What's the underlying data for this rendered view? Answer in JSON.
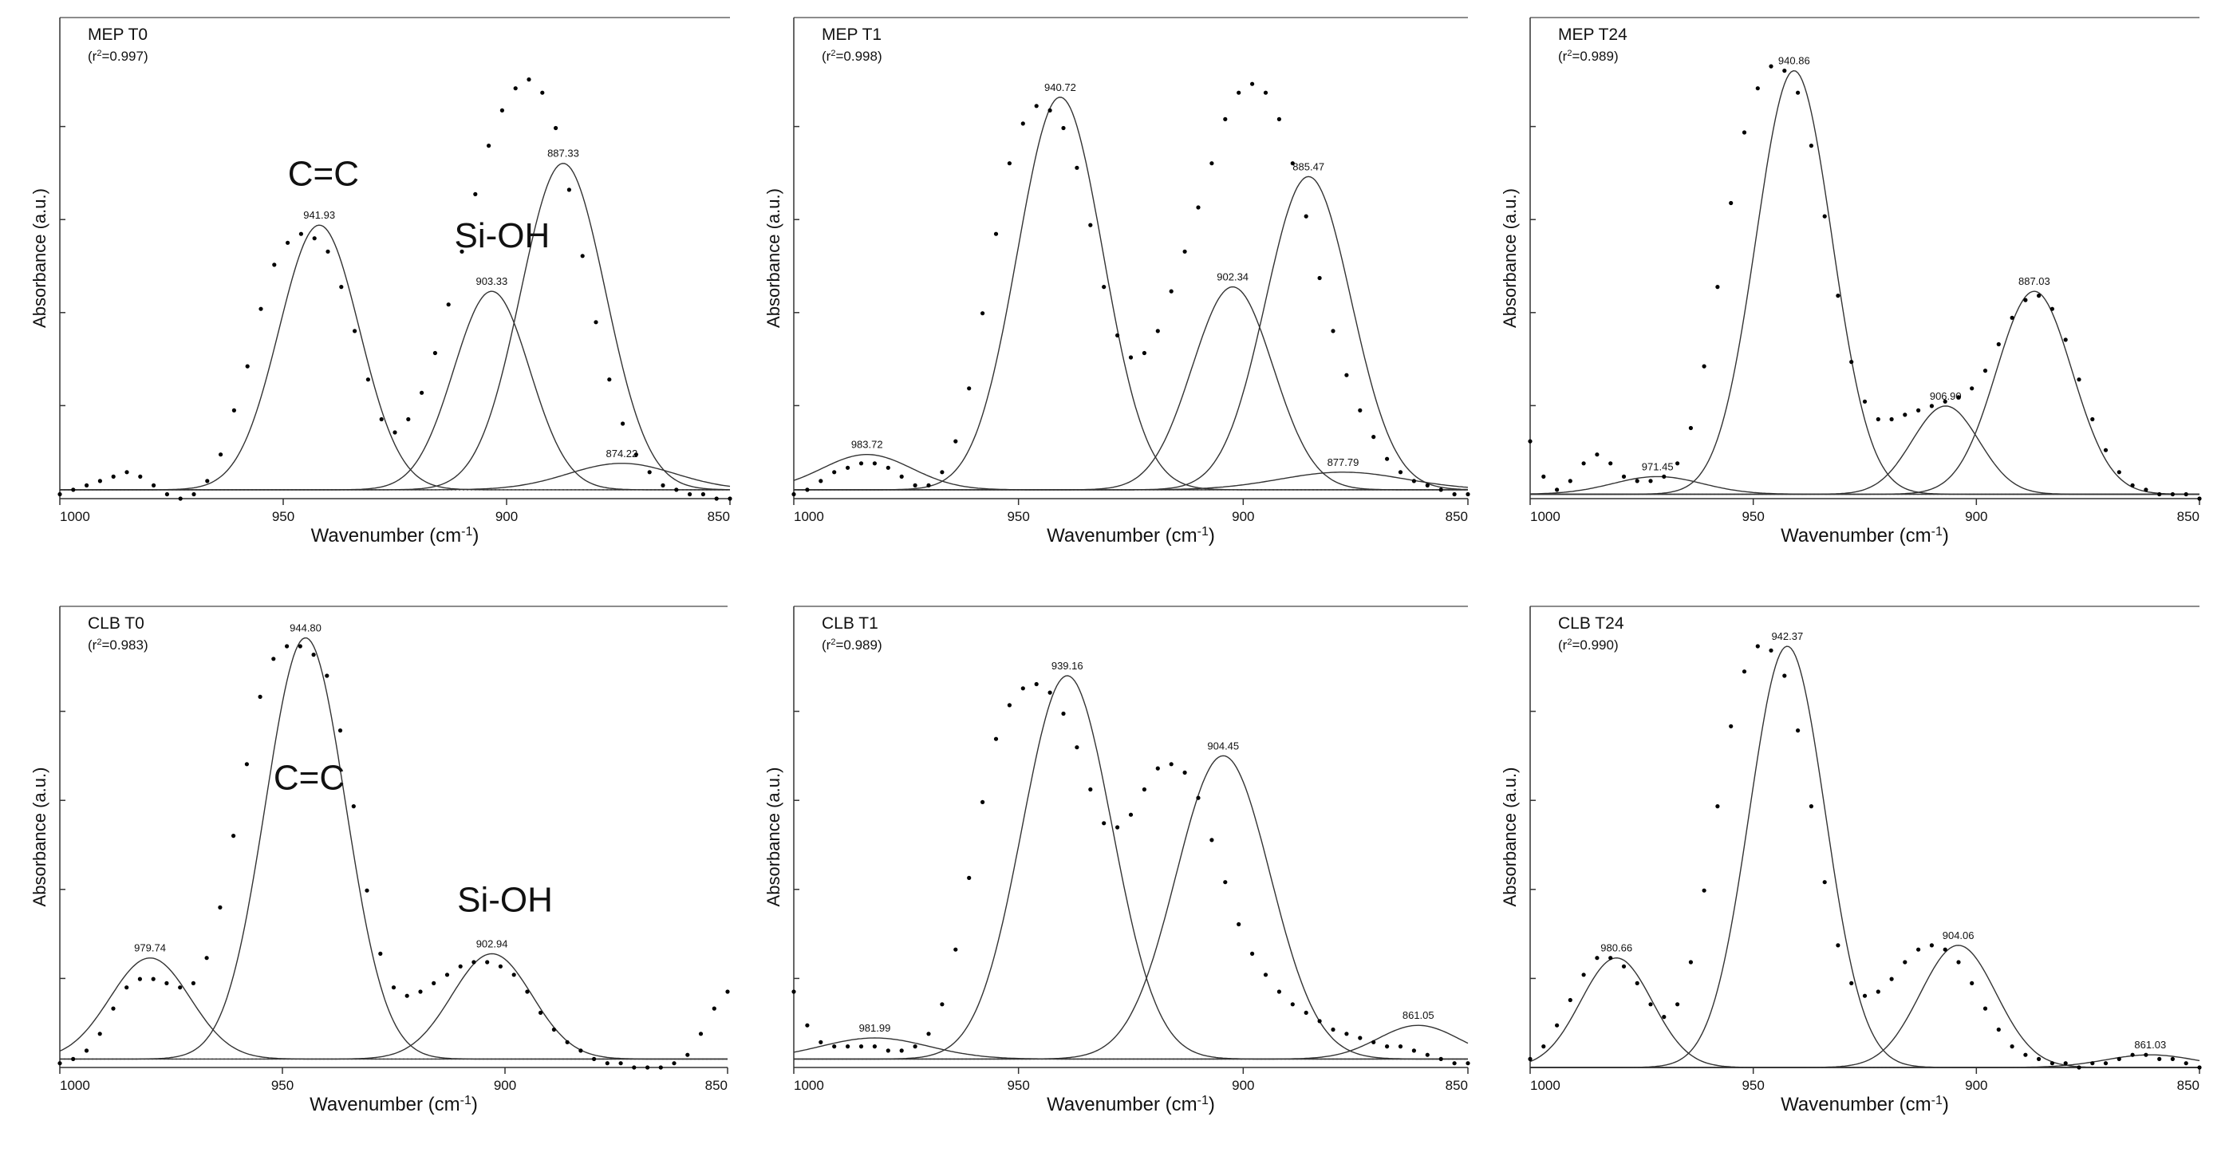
{
  "figure": {
    "axis_xlabel_main": "Wavenumber (cm",
    "axis_xlabel_sup": "-1",
    "axis_xlabel_close": ")",
    "axis_ylabel": "Absorbance (a.u.)",
    "r2_prefix": "(r",
    "r2_sup": "2",
    "r2_eq": "=",
    "r2_close": ")"
  },
  "chart_data": [
    {
      "type": "line",
      "title": "MEP T0",
      "r2": "0.997",
      "xlabel": "Wavenumber (cm-1)",
      "ylabel": "Absorbance (a.u.)",
      "xlim": [
        1000,
        850
      ],
      "ylim": [
        0,
        1
      ],
      "x_ticks": [
        "1000",
        "950",
        "900",
        "850"
      ],
      "baseline": 0.02,
      "annotations": [
        {
          "text": "C=C",
          "x": 941,
          "y": 0.71
        },
        {
          "text": "Si-OH",
          "x": 901,
          "y": 0.57
        }
      ],
      "peaks": [
        {
          "center": 941.93,
          "amp": 0.6,
          "sigma": 9.0,
          "label": "941.93"
        },
        {
          "center": 903.33,
          "amp": 0.45,
          "sigma": 8.5,
          "label": "903.33"
        },
        {
          "center": 887.33,
          "amp": 0.74,
          "sigma": 9.5,
          "label": "887.33"
        },
        {
          "center": 874.22,
          "amp": 0.06,
          "sigma": 12.0,
          "label": "874.22"
        }
      ],
      "points_x": [
        1000,
        997,
        994,
        991,
        988,
        985,
        982,
        979,
        976,
        973,
        970,
        967,
        964,
        961,
        958,
        955,
        952,
        949,
        946,
        943,
        940,
        937,
        934,
        931,
        928,
        925,
        922,
        919,
        916,
        913,
        910,
        907,
        904,
        901,
        898,
        895,
        892,
        889,
        886,
        883,
        880,
        877,
        874,
        871,
        868,
        865,
        862,
        859,
        856,
        853,
        850
      ],
      "points_y": [
        0.01,
        0.02,
        0.03,
        0.04,
        0.05,
        0.06,
        0.05,
        0.03,
        0.01,
        0.0,
        0.01,
        0.04,
        0.1,
        0.2,
        0.3,
        0.43,
        0.53,
        0.58,
        0.6,
        0.59,
        0.56,
        0.48,
        0.38,
        0.27,
        0.18,
        0.15,
        0.18,
        0.24,
        0.33,
        0.44,
        0.56,
        0.69,
        0.8,
        0.88,
        0.93,
        0.95,
        0.92,
        0.84,
        0.7,
        0.55,
        0.4,
        0.27,
        0.17,
        0.1,
        0.06,
        0.03,
        0.02,
        0.01,
        0.01,
        0.0,
        0.0
      ]
    },
    {
      "type": "line",
      "title": "MEP T1",
      "r2": "0.998",
      "xlabel": "Wavenumber (cm-1)",
      "ylabel": "Absorbance (a.u.)",
      "xlim": [
        1000,
        850
      ],
      "ylim": [
        0,
        1
      ],
      "x_ticks": [
        "1000",
        "950",
        "900",
        "850"
      ],
      "baseline": 0.02,
      "annotations": [],
      "peaks": [
        {
          "center": 983.72,
          "amp": 0.08,
          "sigma": 10.0,
          "label": "983.72"
        },
        {
          "center": 940.72,
          "amp": 0.89,
          "sigma": 9.5,
          "label": "940.72"
        },
        {
          "center": 902.34,
          "amp": 0.46,
          "sigma": 9.0,
          "label": "902.34"
        },
        {
          "center": 885.47,
          "amp": 0.71,
          "sigma": 9.5,
          "label": "885.47"
        },
        {
          "center": 877.79,
          "amp": 0.04,
          "sigma": 14.0,
          "label": "877.79"
        }
      ],
      "points_x": [
        1000,
        997,
        994,
        991,
        988,
        985,
        982,
        979,
        976,
        973,
        970,
        967,
        964,
        961,
        958,
        955,
        952,
        949,
        946,
        943,
        940,
        937,
        934,
        931,
        928,
        925,
        922,
        919,
        916,
        913,
        910,
        907,
        904,
        901,
        898,
        895,
        892,
        889,
        886,
        883,
        880,
        877,
        874,
        871,
        868,
        865,
        862,
        859,
        856,
        853,
        850
      ],
      "points_y": [
        0.01,
        0.02,
        0.04,
        0.06,
        0.07,
        0.08,
        0.08,
        0.07,
        0.05,
        0.03,
        0.03,
        0.06,
        0.13,
        0.25,
        0.42,
        0.6,
        0.76,
        0.85,
        0.89,
        0.88,
        0.84,
        0.75,
        0.62,
        0.48,
        0.37,
        0.32,
        0.33,
        0.38,
        0.47,
        0.56,
        0.66,
        0.76,
        0.86,
        0.92,
        0.94,
        0.92,
        0.86,
        0.76,
        0.64,
        0.5,
        0.38,
        0.28,
        0.2,
        0.14,
        0.09,
        0.06,
        0.04,
        0.03,
        0.02,
        0.01,
        0.01
      ]
    },
    {
      "type": "line",
      "title": "MEP T24",
      "r2": "0.989",
      "xlabel": "Wavenumber (cm-1)",
      "ylabel": "Absorbance (a.u.)",
      "xlim": [
        1000,
        850
      ],
      "ylim": [
        0,
        1
      ],
      "x_ticks": [
        "1000",
        "950",
        "900",
        "850"
      ],
      "baseline": 0.01,
      "annotations": [],
      "peaks": [
        {
          "center": 971.45,
          "amp": 0.04,
          "sigma": 10.0,
          "label": "971.45"
        },
        {
          "center": 940.86,
          "amp": 0.96,
          "sigma": 8.5,
          "label": "940.86"
        },
        {
          "center": 906.9,
          "amp": 0.2,
          "sigma": 7.5,
          "label": "906.90"
        },
        {
          "center": 887.03,
          "amp": 0.46,
          "sigma": 8.5,
          "label": "887.03"
        }
      ],
      "points_x": [
        1000,
        997,
        994,
        991,
        988,
        985,
        982,
        979,
        976,
        973,
        970,
        967,
        964,
        961,
        958,
        955,
        952,
        949,
        946,
        943,
        940,
        937,
        934,
        931,
        928,
        925,
        922,
        919,
        916,
        913,
        910,
        907,
        904,
        901,
        898,
        895,
        892,
        889,
        886,
        883,
        880,
        877,
        874,
        871,
        868,
        865,
        862,
        859,
        856,
        853,
        850
      ],
      "points_y": [
        0.13,
        0.05,
        0.02,
        0.04,
        0.08,
        0.1,
        0.08,
        0.05,
        0.04,
        0.04,
        0.05,
        0.08,
        0.16,
        0.3,
        0.48,
        0.67,
        0.83,
        0.93,
        0.98,
        0.97,
        0.92,
        0.8,
        0.64,
        0.46,
        0.31,
        0.22,
        0.18,
        0.18,
        0.19,
        0.2,
        0.21,
        0.22,
        0.23,
        0.25,
        0.29,
        0.35,
        0.41,
        0.45,
        0.46,
        0.43,
        0.36,
        0.27,
        0.18,
        0.11,
        0.06,
        0.03,
        0.02,
        0.01,
        0.01,
        0.01,
        0.0
      ]
    },
    {
      "type": "line",
      "title": "CLB T0",
      "r2": "0.983",
      "xlabel": "Wavenumber (cm-1)",
      "ylabel": "Absorbance (a.u.)",
      "xlim": [
        1000,
        850
      ],
      "ylim": [
        0,
        1
      ],
      "x_ticks": [
        "1000",
        "950",
        "900",
        "850"
      ],
      "baseline": 0.02,
      "annotations": [
        {
          "text": "C=C",
          "x": 944,
          "y": 0.66
        },
        {
          "text": "Si-OH",
          "x": 900,
          "y": 0.37
        }
      ],
      "peaks": [
        {
          "center": 979.74,
          "amp": 0.24,
          "sigma": 9.0,
          "label": "979.74"
        },
        {
          "center": 944.8,
          "amp": 1.0,
          "sigma": 9.0,
          "label": "944.80"
        },
        {
          "center": 902.94,
          "amp": 0.25,
          "sigma": 9.0,
          "label": "902.94"
        }
      ],
      "points_x": [
        1000,
        997,
        994,
        991,
        988,
        985,
        982,
        979,
        976,
        973,
        970,
        967,
        964,
        961,
        958,
        955,
        952,
        949,
        946,
        943,
        940,
        937,
        934,
        931,
        928,
        925,
        922,
        919,
        916,
        913,
        910,
        907,
        904,
        901,
        898,
        895,
        892,
        889,
        886,
        883,
        880,
        877,
        874,
        871,
        868,
        865,
        862,
        859,
        856,
        853,
        850
      ],
      "points_y": [
        0.01,
        0.02,
        0.04,
        0.08,
        0.14,
        0.19,
        0.21,
        0.21,
        0.2,
        0.19,
        0.2,
        0.26,
        0.38,
        0.55,
        0.72,
        0.88,
        0.97,
        1.0,
        1.0,
        0.98,
        0.93,
        0.8,
        0.62,
        0.42,
        0.27,
        0.19,
        0.17,
        0.18,
        0.2,
        0.22,
        0.24,
        0.25,
        0.25,
        0.24,
        0.22,
        0.18,
        0.13,
        0.09,
        0.06,
        0.04,
        0.02,
        0.01,
        0.01,
        0.0,
        0.0,
        0.0,
        0.01,
        0.03,
        0.08,
        0.14,
        0.18
      ]
    },
    {
      "type": "line",
      "title": "CLB T1",
      "r2": "0.989",
      "xlabel": "Wavenumber (cm-1)",
      "ylabel": "Absorbance (a.u.)",
      "xlim": [
        1000,
        850
      ],
      "ylim": [
        0,
        1
      ],
      "x_ticks": [
        "1000",
        "950",
        "900",
        "850"
      ],
      "baseline": 0.02,
      "annotations": [],
      "peaks": [
        {
          "center": 981.99,
          "amp": 0.05,
          "sigma": 12.0,
          "label": "981.99"
        },
        {
          "center": 939.16,
          "amp": 0.91,
          "sigma": 10.0,
          "label": "939.16"
        },
        {
          "center": 904.45,
          "amp": 0.72,
          "sigma": 10.5,
          "label": "904.45"
        },
        {
          "center": 861.05,
          "amp": 0.08,
          "sigma": 9.0,
          "label": "861.05"
        }
      ],
      "points_x": [
        1000,
        997,
        994,
        991,
        988,
        985,
        982,
        979,
        976,
        973,
        970,
        967,
        964,
        961,
        958,
        955,
        952,
        949,
        946,
        943,
        940,
        937,
        934,
        931,
        928,
        925,
        922,
        919,
        916,
        913,
        910,
        907,
        904,
        901,
        898,
        895,
        892,
        889,
        886,
        883,
        880,
        877,
        874,
        871,
        868,
        865,
        862,
        859,
        856,
        853,
        850
      ],
      "points_y": [
        0.18,
        0.1,
        0.06,
        0.05,
        0.05,
        0.05,
        0.05,
        0.04,
        0.04,
        0.05,
        0.08,
        0.15,
        0.28,
        0.45,
        0.63,
        0.78,
        0.86,
        0.9,
        0.91,
        0.89,
        0.84,
        0.76,
        0.66,
        0.58,
        0.57,
        0.6,
        0.66,
        0.71,
        0.72,
        0.7,
        0.64,
        0.54,
        0.44,
        0.34,
        0.27,
        0.22,
        0.18,
        0.15,
        0.13,
        0.11,
        0.09,
        0.08,
        0.07,
        0.06,
        0.05,
        0.05,
        0.04,
        0.03,
        0.02,
        0.01,
        0.01
      ]
    },
    {
      "type": "line",
      "title": "CLB T24",
      "r2": "0.990",
      "xlabel": "Wavenumber (cm-1)",
      "ylabel": "Absorbance (a.u.)",
      "xlim": [
        1000,
        850
      ],
      "ylim": [
        0,
        1
      ],
      "x_ticks": [
        "1000",
        "950",
        "900",
        "850"
      ],
      "baseline": 0.0,
      "annotations": [],
      "peaks": [
        {
          "center": 980.66,
          "amp": 0.26,
          "sigma": 8.0,
          "label": "980.66"
        },
        {
          "center": 942.37,
          "amp": 1.0,
          "sigma": 8.5,
          "label": "942.37"
        },
        {
          "center": 904.06,
          "amp": 0.29,
          "sigma": 8.5,
          "label": "904.06"
        },
        {
          "center": 861.03,
          "amp": 0.03,
          "sigma": 10.0,
          "label": "861.03"
        }
      ],
      "points_x": [
        1000,
        997,
        994,
        991,
        988,
        985,
        982,
        979,
        976,
        973,
        970,
        967,
        964,
        961,
        958,
        955,
        952,
        949,
        946,
        943,
        940,
        937,
        934,
        931,
        928,
        925,
        922,
        919,
        916,
        913,
        910,
        907,
        904,
        901,
        898,
        895,
        892,
        889,
        886,
        883,
        880,
        877,
        874,
        871,
        868,
        865,
        862,
        859,
        856,
        853,
        850
      ],
      "points_y": [
        0.02,
        0.05,
        0.1,
        0.16,
        0.22,
        0.26,
        0.26,
        0.24,
        0.2,
        0.15,
        0.12,
        0.15,
        0.25,
        0.42,
        0.62,
        0.81,
        0.94,
        1.0,
        0.99,
        0.93,
        0.8,
        0.62,
        0.44,
        0.29,
        0.2,
        0.17,
        0.18,
        0.21,
        0.25,
        0.28,
        0.29,
        0.28,
        0.25,
        0.2,
        0.14,
        0.09,
        0.05,
        0.03,
        0.02,
        0.01,
        0.01,
        0.0,
        0.01,
        0.01,
        0.02,
        0.03,
        0.03,
        0.02,
        0.02,
        0.01,
        0.0
      ]
    }
  ]
}
